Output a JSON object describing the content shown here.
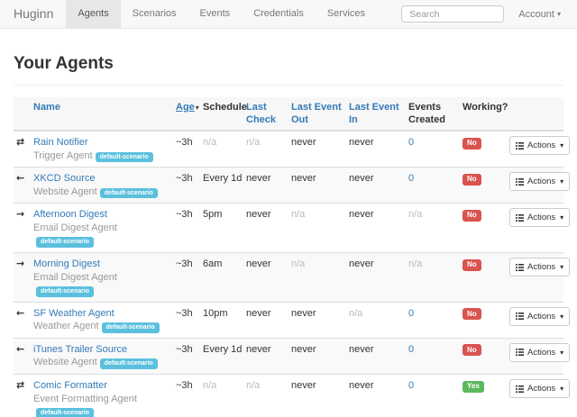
{
  "navbar": {
    "brand": "Huginn",
    "items": [
      {
        "label": "Agents",
        "active": true
      },
      {
        "label": "Scenarios",
        "active": false
      },
      {
        "label": "Events",
        "active": false
      },
      {
        "label": "Credentials",
        "active": false
      },
      {
        "label": "Services",
        "active": false
      }
    ],
    "search": {
      "placeholder": "Search"
    },
    "account": {
      "label": "Account"
    }
  },
  "page": {
    "title": "Your Agents"
  },
  "table": {
    "columns": [
      {
        "label": "Name",
        "link": true
      },
      {
        "label": "Age",
        "link": true,
        "sorted": "desc"
      },
      {
        "label": "Schedule",
        "link": false
      },
      {
        "label": "Last Check",
        "link": true
      },
      {
        "label": "Last Event Out",
        "link": true
      },
      {
        "label": "Last Event In",
        "link": true
      },
      {
        "label": "Events Created",
        "link": false
      },
      {
        "label": "Working?",
        "link": false
      }
    ],
    "actions_label": "Actions",
    "rows": [
      {
        "icon": "exchange-arrows-icon",
        "name": "Rain Notifier",
        "type": "Trigger Agent",
        "scenario": "default-scenario",
        "age": "~3h",
        "schedule": "n/a",
        "last_check": "n/a",
        "last_event_out": "never",
        "last_event_in": "never",
        "events_created": "0",
        "working": "No"
      },
      {
        "icon": "arrow-left-icon",
        "name": "XKCD Source",
        "type": "Website Agent",
        "scenario": "default-scenario",
        "age": "~3h",
        "schedule": "Every 1d",
        "last_check": "never",
        "last_event_out": "never",
        "last_event_in": "never",
        "events_created": "0",
        "working": "No"
      },
      {
        "icon": "arrow-right-icon",
        "name": "Afternoon Digest",
        "type": "Email Digest Agent",
        "scenario": "default-scenario",
        "age": "~3h",
        "schedule": "5pm",
        "last_check": "never",
        "last_event_out": "n/a",
        "last_event_in": "never",
        "events_created": "n/a",
        "working": "No"
      },
      {
        "icon": "arrow-right-icon",
        "name": "Morning Digest",
        "type": "Email Digest Agent",
        "scenario": "default-scenario",
        "age": "~3h",
        "schedule": "6am",
        "last_check": "never",
        "last_event_out": "n/a",
        "last_event_in": "never",
        "events_created": "n/a",
        "working": "No"
      },
      {
        "icon": "arrow-left-icon",
        "name": "SF Weather Agent",
        "type": "Weather Agent",
        "scenario": "default-scenario",
        "age": "~3h",
        "schedule": "10pm",
        "last_check": "never",
        "last_event_out": "never",
        "last_event_in": "n/a",
        "events_created": "0",
        "working": "No"
      },
      {
        "icon": "arrow-left-icon",
        "name": "iTunes Trailer Source",
        "type": "Website Agent",
        "scenario": "default-scenario",
        "age": "~3h",
        "schedule": "Every 1d",
        "last_check": "never",
        "last_event_out": "never",
        "last_event_in": "never",
        "events_created": "0",
        "working": "No"
      },
      {
        "icon": "exchange-arrows-icon",
        "name": "Comic Formatter",
        "type": "Event Formatting Agent",
        "scenario": "default-scenario",
        "age": "~3h",
        "schedule": "n/a",
        "last_check": "n/a",
        "last_event_out": "never",
        "last_event_in": "never",
        "events_created": "0",
        "working": "Yes"
      }
    ]
  },
  "icons": {
    "exchange-arrows-icon": "⇄",
    "arrow-left-icon": "←",
    "arrow-right-icon": "→",
    "caret-down-icon": "▾",
    "sort-desc-icon": "▾"
  },
  "colors": {
    "link": "#337ab7",
    "scenario_badge": "#5bc0de",
    "working_no": "#d9534f",
    "working_yes": "#5cb85c",
    "navbar_bg": "#f8f8f8",
    "stripe": "#f9f9f9"
  }
}
